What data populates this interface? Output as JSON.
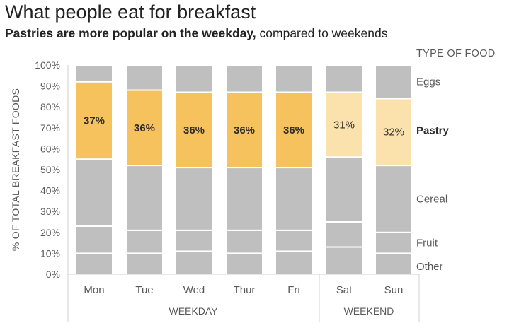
{
  "chart_data": {
    "type": "bar",
    "stacked": true,
    "title": "What people eat for breakfast",
    "subtitle": {
      "bold": "Pastries are more popular on the weekday,",
      "normal": " compared to weekends"
    },
    "ylabel": "% OF TOTAL BREAKFAST FOODS",
    "ylim": [
      0,
      100
    ],
    "yticks": [
      "0%",
      "10%",
      "20%",
      "30%",
      "40%",
      "50%",
      "60%",
      "70%",
      "80%",
      "90%",
      "100%"
    ],
    "legend_title": "TYPE OF FOOD",
    "categories": [
      "Mon",
      "Tue",
      "Wed",
      "Thur",
      "Fri",
      "Sat",
      "Sun"
    ],
    "groups": [
      {
        "label": "WEEKDAY",
        "categories": [
          "Mon",
          "Tue",
          "Wed",
          "Thur",
          "Fri"
        ]
      },
      {
        "label": "WEEKEND",
        "categories": [
          "Sat",
          "Sun"
        ]
      }
    ],
    "series": [
      {
        "name": "Other",
        "values": [
          10,
          10,
          11,
          10,
          11,
          13,
          10
        ]
      },
      {
        "name": "Fruit",
        "values": [
          13,
          11,
          10,
          11,
          10,
          12,
          10
        ]
      },
      {
        "name": "Cereal",
        "values": [
          32,
          31,
          30,
          30,
          30,
          31,
          32
        ]
      },
      {
        "name": "Pastry",
        "values": [
          37,
          36,
          36,
          36,
          36,
          31,
          32
        ]
      },
      {
        "name": "Eggs",
        "values": [
          8,
          12,
          13,
          13,
          13,
          13,
          16
        ]
      }
    ],
    "data_labels": {
      "series": "Pastry",
      "values": [
        "37%",
        "36%",
        "36%",
        "36%",
        "36%",
        "31%",
        "32%"
      ]
    },
    "colors": {
      "base": "#bfbfbf",
      "highlight_weekday": "#f6c25d",
      "highlight_weekend": "#fbe2ad",
      "axis": "#d9d9d9",
      "text": "#595959",
      "label_dark": "#2e2e2e"
    },
    "grid": false
  }
}
